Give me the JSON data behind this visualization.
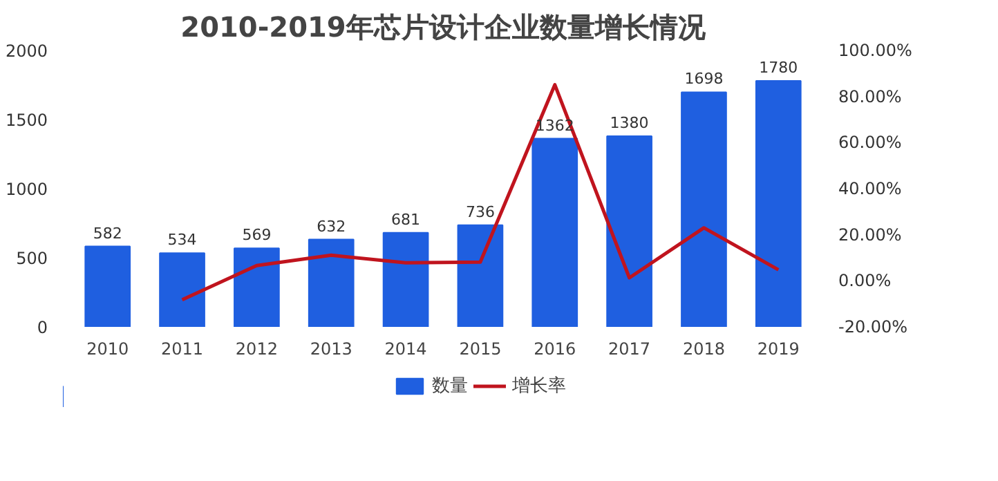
{
  "chart_data": {
    "type": "bar",
    "title": "2010-2019年芯片设计企业数量增长情况",
    "categories": [
      "2010",
      "2011",
      "2012",
      "2013",
      "2014",
      "2015",
      "2016",
      "2017",
      "2018",
      "2019"
    ],
    "series": [
      {
        "name": "数量",
        "color": "#1f5fe0",
        "values": [
          582,
          534,
          569,
          632,
          681,
          736,
          1362,
          1380,
          1698,
          1780
        ],
        "value_labels": [
          "582",
          "534",
          "569",
          "632",
          "681",
          "736",
          "1362",
          "1380",
          "1698",
          "1780"
        ]
      },
      {
        "name": "增长率",
        "type": "line",
        "axis": "y2",
        "color": "#c0141e",
        "values": [
          null,
          -8.2,
          6.6,
          11.1,
          7.8,
          8.1,
          85.1,
          1.3,
          23.0,
          4.8
        ]
      }
    ],
    "ylim": [
      0,
      2000
    ],
    "yticks": [
      0,
      500,
      1000,
      1500,
      2000
    ],
    "y2lim": [
      -20,
      100
    ],
    "y2ticks": [
      {
        "value": -20,
        "label": "-20.00%"
      },
      {
        "value": 0,
        "label": "0.00%"
      },
      {
        "value": 20,
        "label": "20.00%"
      },
      {
        "value": 40,
        "label": "40.00%"
      },
      {
        "value": 60,
        "label": "60.00%"
      },
      {
        "value": 80,
        "label": "80.00%"
      },
      {
        "value": 100,
        "label": "100.00%"
      }
    ],
    "legend": "bottom",
    "line_style": "solid"
  }
}
